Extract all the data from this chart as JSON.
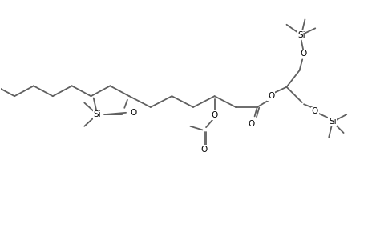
{
  "background": "#ffffff",
  "line_color": "#606060",
  "text_color": "#000000",
  "line_width": 1.3,
  "font_size": 7.5,
  "fig_width": 4.6,
  "fig_height": 3.0,
  "dpi": 100,
  "xlim": [
    0,
    10
  ],
  "ylim": [
    0,
    6.5
  ]
}
